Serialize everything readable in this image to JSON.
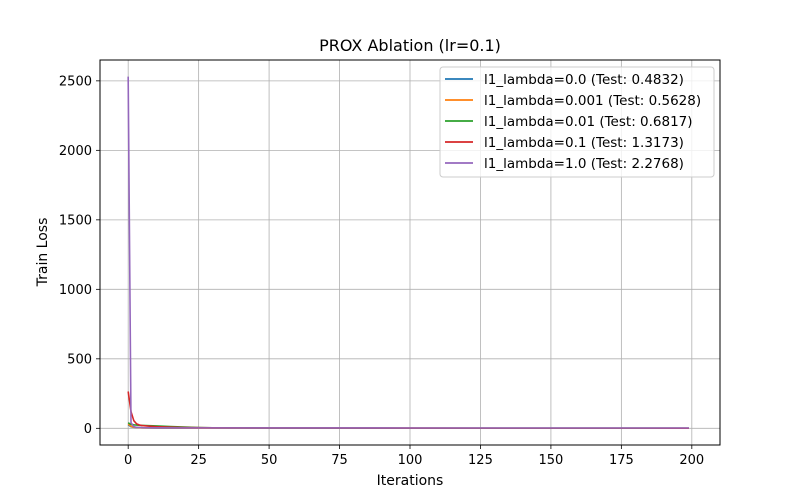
{
  "chart_data": {
    "type": "line",
    "title": "PROX Ablation (lr=0.1)",
    "xlabel": "Iterations",
    "ylabel": "Train Loss",
    "xlim": [
      -10,
      210
    ],
    "ylim": [
      -120,
      2650
    ],
    "xticks": [
      0,
      25,
      50,
      75,
      100,
      125,
      150,
      175,
      200
    ],
    "yticks": [
      0,
      500,
      1000,
      1500,
      2000,
      2500
    ],
    "grid": true,
    "legend_position": "top-right",
    "series": [
      {
        "name": "l1_lambda=0.0 (Test: 0.4832)",
        "color": "#1f77b4",
        "x": [
          0,
          1,
          2,
          3,
          5,
          10,
          20,
          30,
          50,
          100,
          150,
          199
        ],
        "y": [
          25,
          12,
          7,
          5,
          3.5,
          2,
          1.2,
          0.9,
          0.6,
          0.5,
          0.5,
          0.48
        ]
      },
      {
        "name": "l1_lambda=0.001 (Test: 0.5628)",
        "color": "#ff7f0e",
        "x": [
          0,
          1,
          2,
          3,
          5,
          10,
          20,
          30,
          50,
          100,
          150,
          199
        ],
        "y": [
          30,
          15,
          8,
          6,
          4,
          2.5,
          1.5,
          1.0,
          0.8,
          0.6,
          0.57,
          0.56
        ]
      },
      {
        "name": "l1_lambda=0.01 (Test: 0.6817)",
        "color": "#2ca02c",
        "x": [
          0,
          1,
          2,
          3,
          5,
          10,
          15,
          20,
          25,
          30,
          50,
          100,
          150,
          199
        ],
        "y": [
          40,
          28,
          25,
          23,
          21,
          17,
          13,
          9,
          6,
          4,
          2,
          1,
          0.8,
          0.7
        ]
      },
      {
        "name": "l1_lambda=0.1 (Test: 1.3173)",
        "color": "#d62728",
        "x": [
          0,
          1,
          2,
          3,
          4,
          5,
          7,
          10,
          15,
          20,
          30,
          50,
          100,
          150,
          199
        ],
        "y": [
          265,
          120,
          55,
          32,
          24,
          20,
          16,
          12,
          8,
          6,
          4,
          2.5,
          1.6,
          1.4,
          1.3
        ]
      },
      {
        "name": "l1_lambda=1.0 (Test: 2.2768)",
        "color": "#9467bd",
        "x": [
          0,
          1,
          2,
          3,
          5,
          10,
          20,
          50,
          100,
          150,
          199
        ],
        "y": [
          2530,
          40,
          12,
          7,
          5,
          4,
          3,
          2.6,
          2.4,
          2.3,
          2.28
        ]
      }
    ]
  }
}
